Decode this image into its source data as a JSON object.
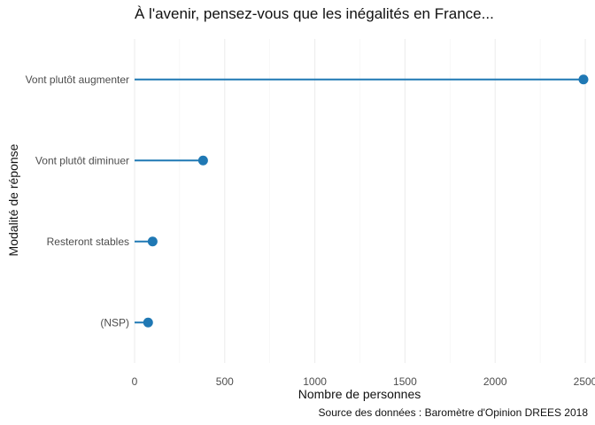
{
  "chart_data": {
    "type": "lollipop",
    "title": "À l'avenir, pensez-vous que les inégalités en France...",
    "caption": "Source des données : Baromètre d'Opinion DREES 2018",
    "xlabel": "Nombre de personnes",
    "ylabel": "Modalité de réponse",
    "xlim": [
      0,
      2500
    ],
    "xticks": [
      "0",
      "500",
      "1000",
      "1500",
      "2000",
      "2500"
    ],
    "grid": true,
    "orientation": "horizontal",
    "categories": [
      "Vont plutôt augmenter",
      "Vont plutôt diminuer",
      "Resteront stables",
      "(NSP)"
    ],
    "values": [
      2490,
      380,
      100,
      75
    ],
    "color": "#1f78b4"
  }
}
